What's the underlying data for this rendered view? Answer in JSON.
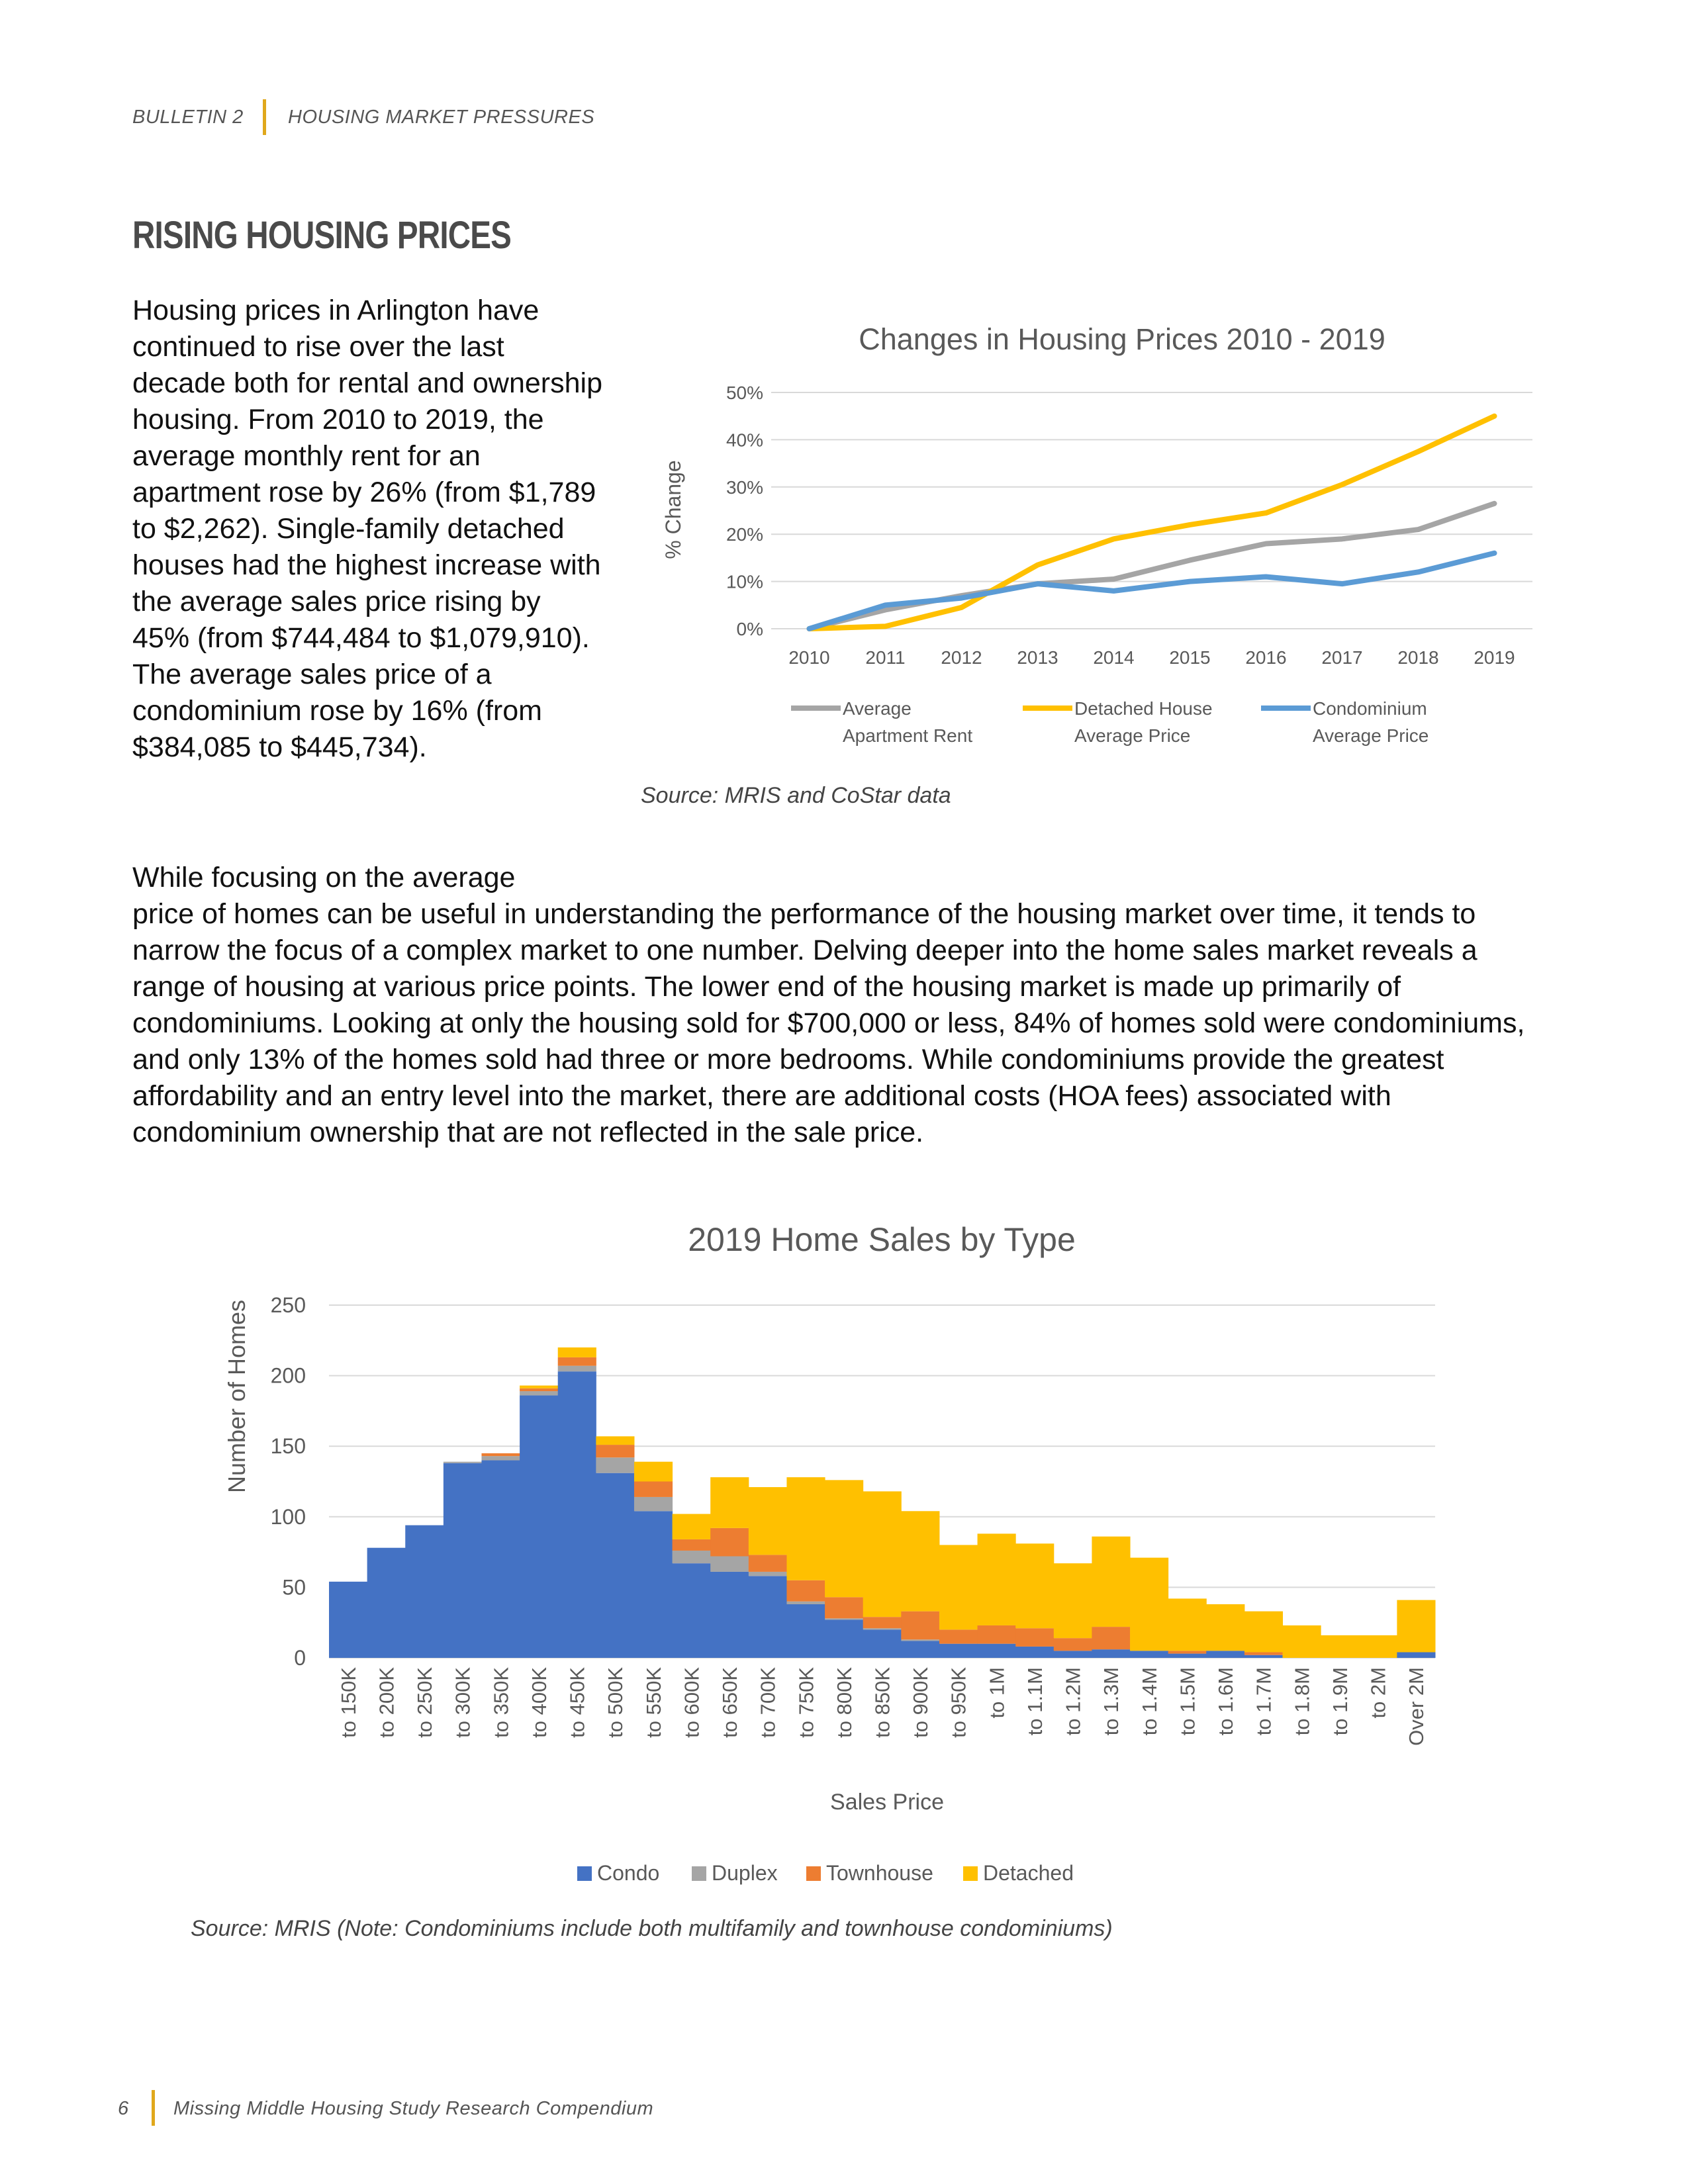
{
  "header": {
    "bulletin": "BULLETIN 2",
    "section": "HOUSING MARKET PRESSURES"
  },
  "section_title": "RISING HOUSING PRICES",
  "intro_text": "Housing prices in Arlington have continued to rise over the last decade both for rental and ownership housing. From 2010 to 2019, the average monthly rent for an apartment rose by 26% (from $1,789 to $2,262). Single-family detached houses had the highest increase with the average sales price rising by 45% (from $744,484 to $1,079,910). The average sales price of a condominium rose by 16% (from $384,085 to $445,734).",
  "body_text_first": "While focusing on the average",
  "body_text_rest": "price of homes can be useful in understanding the performance of the housing market over time, it tends to narrow the focus of a complex market to one number. Delving deeper into the home sales market reveals a range of housing at various price points. The lower end of the housing market is made up primarily of condominiums. Looking at only the housing sold for $700,000 or less, 84% of homes sold were condominiums, and only 13% of the homes sold had three or more bedrooms. While condominiums provide the greatest affordability and an entry level into the market, there are additional costs (HOA fees) associated with condominium ownership that are not reflected in the sale price.",
  "chart1_source": "Source: MRIS and CoStar data",
  "chart2_source": "Source: MRIS (Note: Condominiums include both multifamily and townhouse condominiums)",
  "footer": {
    "page_number": "6",
    "title": "Missing Middle Housing Study Research Compendium"
  },
  "colors": {
    "gold": "#e0a81c",
    "rent": "#a5a5a5",
    "detached": "#ffc000",
    "condo_line": "#5b9bd5",
    "condo": "#4472c4",
    "duplex": "#a5a5a5",
    "townhouse": "#ed7d31",
    "detached_bar": "#ffc000"
  },
  "chart_data": [
    {
      "type": "line",
      "title": "Changes in Housing Prices 2010 - 2019",
      "ylabel": "% Change",
      "xlabel": "",
      "x": [
        "2010",
        "2011",
        "2012",
        "2013",
        "2014",
        "2015",
        "2016",
        "2017",
        "2018",
        "2019"
      ],
      "ylim": [
        0,
        50
      ],
      "yticks": [
        "0%",
        "10%",
        "20%",
        "30%",
        "40%",
        "50%"
      ],
      "grid": true,
      "legend": "bottom",
      "series": [
        {
          "name": "Average Apartment Rent",
          "name_lines": [
            "Average",
            "Apartment Rent"
          ],
          "values": [
            0,
            4,
            7,
            9.5,
            10.5,
            14.5,
            18,
            19,
            21,
            26.5
          ]
        },
        {
          "name": "Detached House Average Price",
          "name_lines": [
            "Detached House",
            "Average Price"
          ],
          "values": [
            0,
            0.5,
            4.5,
            13.5,
            19,
            22,
            24.5,
            30.5,
            37.5,
            45
          ]
        },
        {
          "name": "Condominium Average Price",
          "name_lines": [
            "Condominium",
            "Average Price"
          ],
          "values": [
            0,
            5,
            6.5,
            9.5,
            8,
            10,
            11,
            9.5,
            12,
            16
          ]
        }
      ]
    },
    {
      "type": "bar",
      "stacked": true,
      "title": "2019 Home Sales by Type",
      "xlabel": "Sales Price",
      "ylabel": "Number of Homes",
      "ylim": [
        0,
        250
      ],
      "yticks": [
        "0",
        "50",
        "100",
        "150",
        "200",
        "250"
      ],
      "grid": true,
      "legend": "bottom",
      "categories": [
        "to 150K",
        "to 200K",
        "to 250K",
        "to 300K",
        "to 350K",
        "to 400K",
        "to 450K",
        "to 500K",
        "to 550K",
        "to 600K",
        "to 650K",
        "to 700K",
        "to 750K",
        "to 800K",
        "to 850K",
        "to 900K",
        "to 950K",
        "to 1M",
        "to 1.1M",
        "to 1.2M",
        "to 1.3M",
        "to 1.4M",
        "to 1.5M",
        "to 1.6M",
        "to 1.7M",
        "to 1.8M",
        "to 1.9M",
        "to 2M",
        "Over 2M"
      ],
      "series": [
        {
          "name": "Condo",
          "values": [
            54,
            78,
            94,
            138,
            140,
            186,
            203,
            131,
            104,
            67,
            61,
            58,
            38,
            27,
            20,
            12,
            10,
            10,
            8,
            5,
            6,
            5,
            3,
            5,
            2,
            0,
            0,
            0,
            4
          ]
        },
        {
          "name": "Duplex",
          "values": [
            0,
            0,
            0,
            1,
            3,
            3,
            4,
            11,
            10,
            9,
            11,
            3,
            2,
            1,
            1,
            1,
            0,
            0,
            0,
            0,
            0,
            0,
            0,
            0,
            0,
            0,
            0,
            0,
            0
          ]
        },
        {
          "name": "Townhouse",
          "values": [
            0,
            0,
            0,
            0,
            2,
            2,
            6,
            9,
            11,
            8,
            20,
            12,
            15,
            15,
            8,
            20,
            10,
            13,
            13,
            9,
            16,
            0,
            2,
            0,
            2,
            0,
            0,
            0,
            0
          ]
        },
        {
          "name": "Detached",
          "values": [
            0,
            0,
            0,
            0,
            0,
            2,
            7,
            6,
            14,
            18,
            36,
            48,
            73,
            83,
            89,
            71,
            60,
            65,
            60,
            53,
            64,
            66,
            37,
            33,
            29,
            23,
            16,
            16,
            37
          ]
        }
      ]
    }
  ]
}
